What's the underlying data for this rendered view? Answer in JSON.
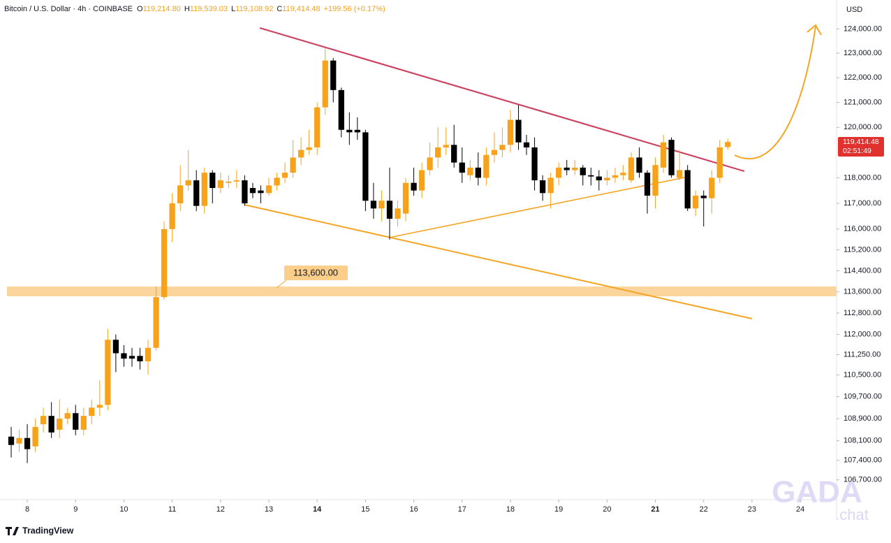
{
  "chart_data": {
    "type": "candlestick",
    "header": {
      "symbol": "Bitcoin / U.S. Dollar · 4h · COINBASE",
      "fields": [
        {
          "label": "O",
          "value": "119,214.80"
        },
        {
          "label": "H",
          "value": "119,539.03"
        },
        {
          "label": "L",
          "value": "119,108.92"
        },
        {
          "label": "C",
          "value": "119,414.48"
        }
      ],
      "change": "+199.56 (+0.17%)"
    },
    "currency": "USD",
    "last_price_label": "119,414.48",
    "countdown": "02:51:49",
    "zone_label": "113,600.00",
    "footer": "TradingView",
    "watermark": [
      "GADA",
      ".chat"
    ],
    "up_color": "#f7a21b",
    "down_color": "#000000",
    "log_scale": true,
    "ylim": [
      106000,
      125200
    ],
    "yticks": [
      {
        "value": 124000,
        "label": "124,000.00"
      },
      {
        "value": 123000,
        "label": "123,000.00"
      },
      {
        "value": 122000,
        "label": "122,000.00"
      },
      {
        "value": 121000,
        "label": "121,000.00"
      },
      {
        "value": 120000,
        "label": "120,000.00"
      },
      {
        "value": 118000,
        "label": "118,000.00"
      },
      {
        "value": 117000,
        "label": "117,000.00"
      },
      {
        "value": 116000,
        "label": "116,000.00"
      },
      {
        "value": 115200,
        "label": "115,200.00"
      },
      {
        "value": 114400,
        "label": "114,400.00"
      },
      {
        "value": 113600,
        "label": "113,600.00"
      },
      {
        "value": 112800,
        "label": "112,800.00"
      },
      {
        "value": 112000,
        "label": "112,000.00"
      },
      {
        "value": 111250,
        "label": "111,250.00"
      },
      {
        "value": 110500,
        "label": "110,500.00"
      },
      {
        "value": 109700,
        "label": "109,700.00"
      },
      {
        "value": 108900,
        "label": "108,900.00"
      },
      {
        "value": 108100,
        "label": "108,100.00"
      },
      {
        "value": 107400,
        "label": "107,400.00"
      },
      {
        "value": 106700,
        "label": "106,700.00"
      }
    ],
    "xlim": [
      7.58,
      24.75
    ],
    "xticks": [
      8,
      9,
      10,
      11,
      12,
      13,
      14,
      15,
      16,
      17,
      18,
      19,
      20,
      21,
      22,
      23,
      24
    ],
    "bold_xticks": [
      14,
      21
    ],
    "x": [
      7.667,
      7.833,
      8,
      8.167,
      8.333,
      8.5,
      8.667,
      8.833,
      9,
      9.167,
      9.333,
      9.5,
      9.667,
      9.833,
      10,
      10.167,
      10.333,
      10.5,
      10.667,
      10.833,
      11,
      11.167,
      11.333,
      11.5,
      11.667,
      11.833,
      12,
      12.167,
      12.333,
      12.5,
      12.667,
      12.833,
      13,
      13.167,
      13.333,
      13.5,
      13.667,
      13.833,
      14,
      14.167,
      14.333,
      14.5,
      14.667,
      14.833,
      15,
      15.167,
      15.333,
      15.5,
      15.667,
      15.833,
      16,
      16.167,
      16.333,
      16.5,
      16.667,
      16.833,
      17,
      17.167,
      17.333,
      17.5,
      17.667,
      17.833,
      18,
      18.167,
      18.333,
      18.5,
      18.667,
      18.833,
      19,
      19.167,
      19.333,
      19.5,
      19.667,
      19.833,
      20,
      20.167,
      20.333,
      20.5,
      20.667,
      20.833,
      21,
      21.167,
      21.333,
      21.5,
      21.667,
      21.833,
      22,
      22.167,
      22.333,
      22.5
    ],
    "open": [
      108250,
      108000,
      108200,
      107900,
      108700,
      109000,
      108500,
      108900,
      109100,
      108500,
      109000,
      109300,
      109400,
      111800,
      111300,
      111200,
      111200,
      111000,
      111500,
      113400,
      116000,
      117000,
      117700,
      117900,
      116900,
      118200,
      117600,
      117800,
      117850,
      117900,
      117600,
      117500,
      117400,
      117700,
      118000,
      118200,
      118800,
      119100,
      119200,
      120800,
      122700,
      121500,
      119900,
      119900,
      119800,
      117100,
      116800,
      117100,
      116400,
      116600,
      117800,
      117500,
      118300,
      118800,
      119200,
      119300,
      118600,
      118100,
      118400,
      118000,
      118900,
      119100,
      119300,
      120300,
      119400,
      119200,
      117900,
      117400,
      118000,
      118400,
      118300,
      118400,
      118100,
      118050,
      117900,
      118000,
      118100,
      117900,
      118800,
      118200,
      117300,
      118400,
      119500,
      118000,
      118300,
      116800,
      117300,
      117200,
      118000,
      119214.8
    ],
    "close": [
      107950,
      108200,
      107800,
      108600,
      109000,
      108400,
      108900,
      109100,
      108500,
      109000,
      109300,
      109400,
      111800,
      111300,
      111100,
      111100,
      111000,
      111500,
      113400,
      116000,
      117000,
      117700,
      117900,
      116900,
      118200,
      117600,
      117900,
      117850,
      117900,
      117000,
      117400,
      117400,
      117700,
      118000,
      118200,
      118800,
      119100,
      119200,
      120800,
      122700,
      121500,
      119900,
      119800,
      119800,
      117100,
      116800,
      117100,
      116400,
      116800,
      117800,
      117500,
      118300,
      118800,
      119200,
      119300,
      118600,
      118200,
      118400,
      118000,
      118900,
      119100,
      119300,
      120300,
      119400,
      119200,
      117900,
      117400,
      118000,
      118400,
      118300,
      118400,
      118100,
      118050,
      117900,
      118000,
      118100,
      118200,
      118800,
      118200,
      117300,
      118500,
      119400,
      118100,
      118300,
      116800,
      117300,
      117200,
      118000,
      119200,
      119414.48
    ],
    "high": [
      108600,
      108500,
      108700,
      108900,
      109300,
      109500,
      109600,
      109300,
      109400,
      109300,
      109600,
      110300,
      112200,
      112000,
      111600,
      111500,
      111500,
      111800,
      113800,
      116300,
      117400,
      118500,
      119100,
      118300,
      118400,
      118300,
      118200,
      118100,
      118300,
      118100,
      117800,
      117700,
      118000,
      118200,
      118600,
      119500,
      119600,
      119900,
      121000,
      123200,
      122800,
      121600,
      120600,
      120400,
      119900,
      117800,
      117500,
      118400,
      117100,
      118000,
      118400,
      118600,
      119400,
      120000,
      120000,
      120100,
      119200,
      118700,
      119000,
      119200,
      119800,
      120000,
      120700,
      120900,
      119700,
      119600,
      118100,
      118200,
      118600,
      118700,
      118700,
      118500,
      118400,
      118300,
      118300,
      118400,
      118500,
      119000,
      119200,
      118300,
      118800,
      119700,
      119600,
      119100,
      118500,
      117500,
      117500,
      118300,
      119500,
      119539.03
    ],
    "low": [
      107500,
      107700,
      107300,
      107700,
      108400,
      108200,
      108200,
      108700,
      108300,
      108300,
      108700,
      109000,
      109200,
      110600,
      110800,
      110800,
      110700,
      110500,
      111400,
      113300,
      115500,
      116700,
      117500,
      116700,
      116600,
      117000,
      117400,
      117600,
      117600,
      116900,
      117200,
      117000,
      117300,
      117500,
      117800,
      118000,
      118500,
      118900,
      118900,
      120500,
      121000,
      119600,
      119300,
      119500,
      116700,
      116400,
      116300,
      115600,
      116100,
      116300,
      117300,
      117200,
      118100,
      118400,
      118900,
      118400,
      117800,
      117900,
      117700,
      117700,
      118600,
      118800,
      119000,
      119100,
      118900,
      117500,
      117100,
      116800,
      117700,
      118100,
      118100,
      117700,
      117700,
      117500,
      117700,
      117800,
      117900,
      117800,
      118000,
      116600,
      116800,
      118200,
      118000,
      117900,
      116700,
      116500,
      116100,
      116600,
      117800,
      119108.92
    ]
  }
}
